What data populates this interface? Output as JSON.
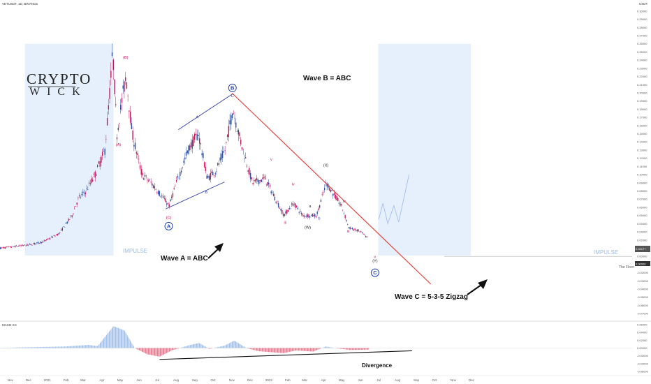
{
  "symbol_line": "VETUSDT, 1D, BINANCE",
  "currency": "USDT",
  "logo": {
    "line1": "CRYPTO",
    "line2": "WICK"
  },
  "impulse_label": "IMPULSE",
  "floor_label": "The Floor",
  "divergence_label": "Divergence",
  "annotations": {
    "wave_a": "Wave A = ABC",
    "wave_b": "Wave B = ABC",
    "wave_c": "Wave C =  5-3-5 Zigzag"
  },
  "price_tags": {
    "current": "0.02177",
    "floor": "0.00000"
  },
  "colors": {
    "bull": "#2e4fa0",
    "bear": "#c2185b",
    "trendline": "#e53935",
    "channel": "#2f3fa6",
    "impulse_box": "#e5f0fc",
    "macd_pos": "#90b4e6",
    "macd_neg": "#e0617a",
    "circle": "#1f3fa6"
  },
  "chart_data": [
    {
      "type": "candlestick",
      "title": "",
      "y_ticks": [
        "0.30000",
        "0.29000",
        "0.28000",
        "0.27000",
        "0.26000",
        "0.25000",
        "0.24000",
        "0.23000",
        "0.22000",
        "0.21000",
        "0.20000",
        "0.19000",
        "0.18000",
        "0.17000",
        "0.16000",
        "0.15000",
        "0.14000",
        "0.13000",
        "0.12000",
        "0.11000",
        "0.10000",
        "0.09000",
        "0.08000",
        "0.07000",
        "0.06000",
        "0.05000",
        "0.04000",
        "0.03000",
        "0.02000",
        "0.01000",
        "0.00000",
        "-0.01000",
        "-0.02000",
        "-0.03000",
        "-0.04000",
        "-0.05000",
        "-0.06000",
        "-0.07000"
      ],
      "ylim": [
        -0.075,
        0.305
      ],
      "x_ticks": [
        "Nov",
        "Dec",
        "2021",
        "Feb",
        "Mar",
        "Apr",
        "May",
        "Jun",
        "Jul",
        "Aug",
        "Sep",
        "Oct",
        "Nov",
        "Dec",
        "2022",
        "Feb",
        "Mar",
        "Apr",
        "May",
        "Jun",
        "Jul",
        "Aug",
        "Sep",
        "Oct",
        "Nov",
        "Dec"
      ],
      "price_path": [
        {
          "date": "2020-10-15",
          "price": 0.01
        },
        {
          "date": "2020-12-01",
          "price": 0.014
        },
        {
          "date": "2020-12-25",
          "price": 0.018
        },
        {
          "date": "2021-01-20",
          "price": 0.028
        },
        {
          "date": "2021-02-10",
          "price": 0.05
        },
        {
          "date": "2021-02-20",
          "price": 0.07
        },
        {
          "date": "2021-03-05",
          "price": 0.08
        },
        {
          "date": "2021-03-20",
          "price": 0.1
        },
        {
          "date": "2021-04-05",
          "price": 0.13
        },
        {
          "date": "2021-04-12",
          "price": 0.19
        },
        {
          "date": "2021-04-18",
          "price": 0.25
        },
        {
          "date": "2021-04-25",
          "price": 0.15
        },
        {
          "date": "2021-05-05",
          "price": 0.2
        },
        {
          "date": "2021-05-10",
          "price": 0.22
        },
        {
          "date": "2021-05-20",
          "price": 0.15
        },
        {
          "date": "2021-06-05",
          "price": 0.1
        },
        {
          "date": "2021-06-20",
          "price": 0.09
        },
        {
          "date": "2021-07-01",
          "price": 0.08
        },
        {
          "date": "2021-07-20",
          "price": 0.062
        },
        {
          "date": "2021-08-01",
          "price": 0.09
        },
        {
          "date": "2021-08-20",
          "price": 0.13
        },
        {
          "date": "2021-09-06",
          "price": 0.15
        },
        {
          "date": "2021-09-21",
          "price": 0.095
        },
        {
          "date": "2021-10-05",
          "price": 0.105
        },
        {
          "date": "2021-10-20",
          "price": 0.13
        },
        {
          "date": "2021-11-02",
          "price": 0.18
        },
        {
          "date": "2021-11-15",
          "price": 0.14
        },
        {
          "date": "2021-12-04",
          "price": 0.09
        },
        {
          "date": "2021-12-25",
          "price": 0.095
        },
        {
          "date": "2022-01-25",
          "price": 0.05
        },
        {
          "date": "2022-02-10",
          "price": 0.065
        },
        {
          "date": "2022-02-25",
          "price": 0.05
        },
        {
          "date": "2022-03-20",
          "price": 0.05
        },
        {
          "date": "2022-04-05",
          "price": 0.09
        },
        {
          "date": "2022-05-01",
          "price": 0.06
        },
        {
          "date": "2022-05-12",
          "price": 0.035
        },
        {
          "date": "2022-06-01",
          "price": 0.03
        },
        {
          "date": "2022-06-12",
          "price": 0.022
        }
      ],
      "wave_labels": [
        {
          "text": "(B)",
          "date": "2021-05-10",
          "price": 0.242,
          "color": "bear"
        },
        {
          "text": "(A)",
          "date": "2021-04-28",
          "price": 0.135,
          "color": "bear"
        },
        {
          "text": "(C)",
          "date": "2021-07-20",
          "price": 0.046,
          "color": "bear"
        },
        {
          "text": "A",
          "date": "2021-09-05",
          "price": 0.169,
          "color": "bull"
        },
        {
          "text": "B",
          "date": "2021-09-20",
          "price": 0.077,
          "color": "bull"
        },
        {
          "text": "C",
          "date": "2021-11-02",
          "price": 0.195,
          "color": "bull"
        },
        {
          "text": "(X)",
          "date": "2022-04-05",
          "price": 0.11,
          "color": "dark"
        },
        {
          "text": "(W)",
          "date": "2022-03-06",
          "price": 0.034,
          "color": "dark"
        },
        {
          "text": "(Y)",
          "date": "2022-06-25",
          "price": -0.007,
          "color": "dark"
        },
        {
          "text": "b",
          "date": "2022-03-25",
          "price": 0.045,
          "color": "bull"
        },
        {
          "text": "a",
          "date": "2022-03-10",
          "price": 0.06,
          "color": "dark"
        },
        {
          "text": "v",
          "date": "2022-01-05",
          "price": 0.117,
          "color": "bear"
        },
        {
          "text": "iv",
          "date": "2022-02-10",
          "price": 0.087,
          "color": "bear"
        },
        {
          "text": "iii",
          "date": "2022-01-28",
          "price": 0.04,
          "color": "bear"
        },
        {
          "text": "iv",
          "date": "2022-05-05",
          "price": 0.066,
          "color": "bear"
        },
        {
          "text": "iii",
          "date": "2022-05-12",
          "price": 0.029,
          "color": "bear"
        },
        {
          "text": "v",
          "date": "2022-06-25",
          "price": -0.002,
          "color": "bear"
        }
      ],
      "circle_labels": [
        {
          "text": "A",
          "date": "2021-07-20",
          "price": 0.037
        },
        {
          "text": "B",
          "date": "2021-11-02",
          "price": 0.206
        },
        {
          "text": "C",
          "date": "2022-06-25",
          "price": -0.02
        }
      ],
      "trendline": [
        {
          "date": "2021-11-01",
          "price": 0.2
        },
        {
          "date": "2022-09-25",
          "price": -0.034
        }
      ],
      "channel_upper": [
        {
          "date": "2021-08-05",
          "price": 0.155
        },
        {
          "date": "2021-11-01",
          "price": 0.198
        }
      ],
      "channel_lower": [
        {
          "date": "2021-07-15",
          "price": 0.058
        },
        {
          "date": "2021-10-20",
          "price": 0.091
        }
      ],
      "projection": [
        {
          "date": "2022-07-01",
          "price": 0.045
        },
        {
          "date": "2022-07-08",
          "price": 0.065
        },
        {
          "date": "2022-07-16",
          "price": 0.04
        },
        {
          "date": "2022-07-26",
          "price": 0.062
        },
        {
          "date": "2022-08-03",
          "price": 0.042
        },
        {
          "date": "2022-08-20",
          "price": 0.1
        }
      ],
      "floor_price": 0.0,
      "impulse_zones": [
        {
          "start": "2020-11-25",
          "end": "2021-04-20",
          "low": 0.001,
          "high": 0.26
        },
        {
          "start": "2022-06-30",
          "end": "2022-11-30",
          "low": 0.001,
          "high": 0.26
        }
      ]
    },
    {
      "type": "bar",
      "title": "MACD-XC",
      "y_ticks": [
        "0.06000",
        "0.04000",
        "0.02000",
        "0.00000",
        "-0.02000",
        "-0.04000",
        "-0.06000"
      ],
      "ylim": [
        -0.065,
        0.065
      ],
      "histogram_path": [
        {
          "date": "2020-10-15",
          "value": 0.0005
        },
        {
          "date": "2021-02-01",
          "value": 0.004
        },
        {
          "date": "2021-03-10",
          "value": 0.008
        },
        {
          "date": "2021-03-25",
          "value": 0.005
        },
        {
          "date": "2021-04-20",
          "value": 0.056
        },
        {
          "date": "2021-05-08",
          "value": 0.045
        },
        {
          "date": "2021-05-25",
          "value": 0.0
        },
        {
          "date": "2021-06-15",
          "value": -0.016
        },
        {
          "date": "2021-07-05",
          "value": -0.022
        },
        {
          "date": "2021-07-25",
          "value": -0.006
        },
        {
          "date": "2021-08-25",
          "value": 0.008
        },
        {
          "date": "2021-09-08",
          "value": 0.013
        },
        {
          "date": "2021-09-25",
          "value": -0.002
        },
        {
          "date": "2021-10-20",
          "value": 0.006
        },
        {
          "date": "2021-11-05",
          "value": 0.019
        },
        {
          "date": "2021-11-25",
          "value": 0.0
        },
        {
          "date": "2021-12-15",
          "value": -0.008
        },
        {
          "date": "2022-01-25",
          "value": -0.013
        },
        {
          "date": "2022-02-15",
          "value": -0.006
        },
        {
          "date": "2022-03-15",
          "value": -0.009
        },
        {
          "date": "2022-04-05",
          "value": 0.004
        },
        {
          "date": "2022-04-20",
          "value": 0.0
        },
        {
          "date": "2022-05-15",
          "value": -0.005
        },
        {
          "date": "2022-06-15",
          "value": -0.004
        }
      ],
      "divergence_line": [
        {
          "date": "2021-07-05",
          "value": -0.029
        },
        {
          "date": "2022-08-25",
          "value": -0.007
        }
      ]
    }
  ]
}
